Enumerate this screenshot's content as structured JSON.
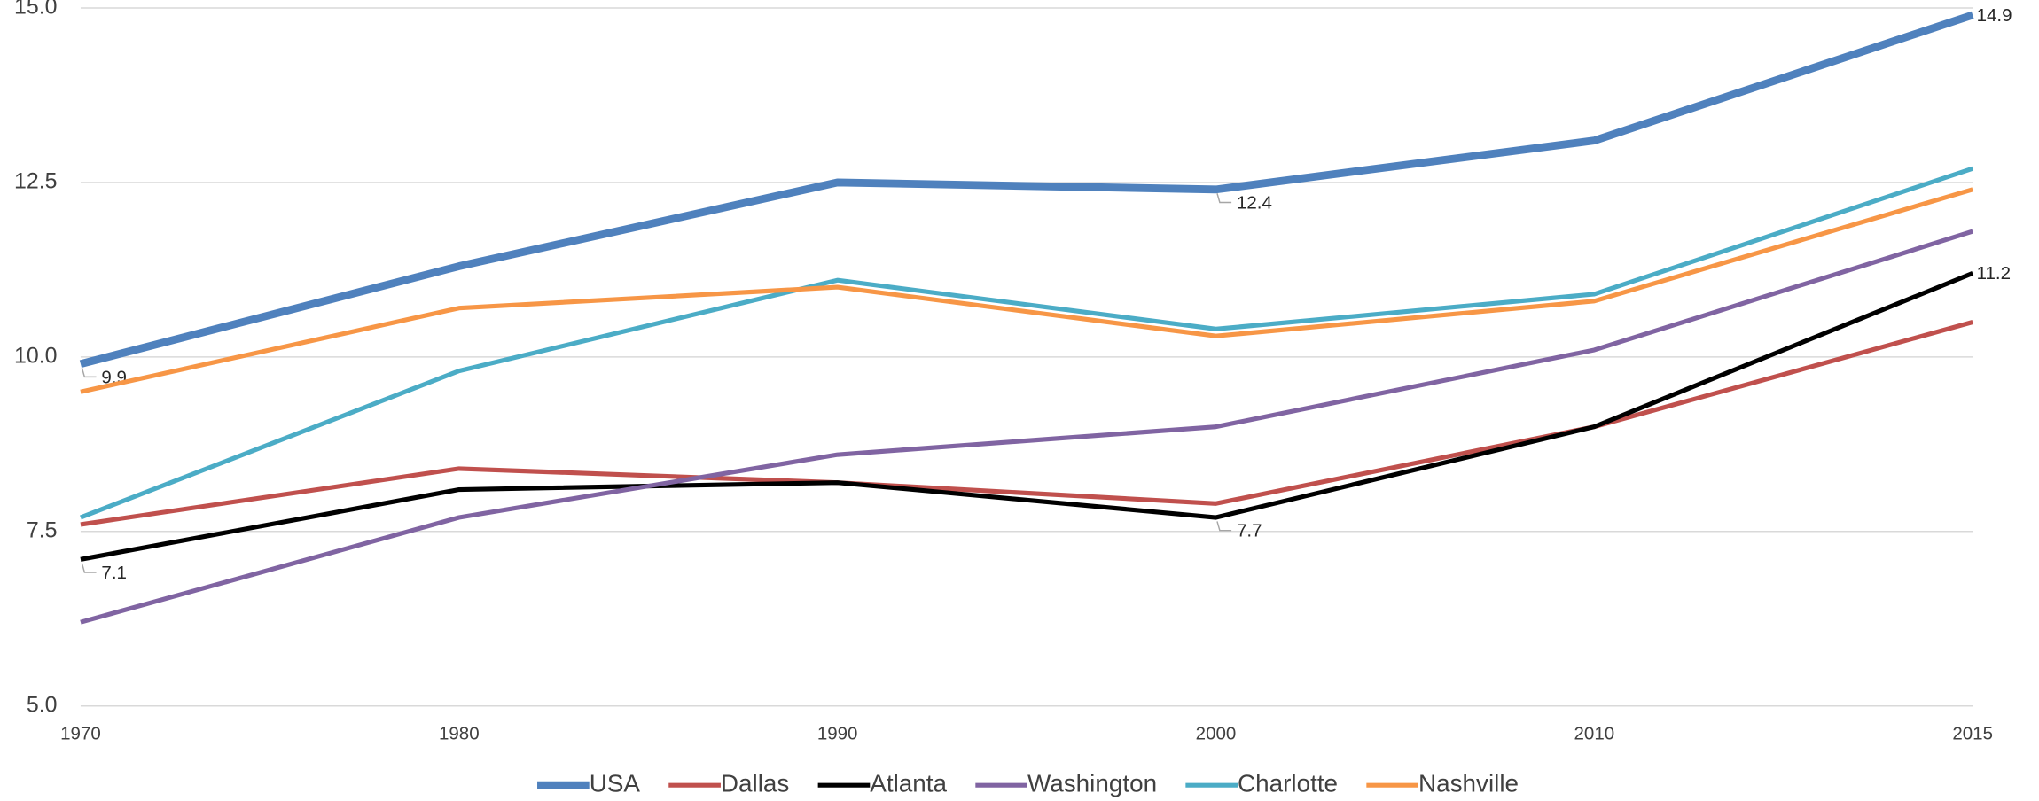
{
  "chart_data": {
    "type": "line",
    "categories": [
      "1970",
      "1980",
      "1990",
      "2000",
      "2010",
      "2015"
    ],
    "ylim": [
      5,
      15
    ],
    "yticks": [
      {
        "value": 15,
        "label": "15.0"
      },
      12.5,
      {
        "value": 10,
        "label": "10.0"
      },
      7.5,
      {
        "value": 5,
        "label": "5.0"
      }
    ],
    "grid": true,
    "legend": "bottom",
    "series": [
      {
        "name": "USA",
        "color": "#4f81bd",
        "values": [
          9.9,
          11.3,
          12.5,
          12.4,
          13.1,
          14.9
        ],
        "value_labels": [
          "9.9",
          null,
          null,
          "12.4",
          null,
          "14.9"
        ]
      },
      {
        "name": "Dallas",
        "color": "#c0504d",
        "values": [
          7.6,
          8.4,
          8.2,
          7.9,
          9.0,
          10.5
        ]
      },
      {
        "name": "Atlanta",
        "color": "#000000",
        "values": [
          7.1,
          8.1,
          8.2,
          7.7,
          9.0,
          11.2
        ],
        "value_labels": [
          "7.1",
          null,
          null,
          "7.7",
          null,
          "11.2"
        ]
      },
      {
        "name": "Washington",
        "color": "#8064a2",
        "values": [
          6.2,
          7.7,
          8.6,
          9.0,
          10.1,
          11.8
        ]
      },
      {
        "name": "Charlotte",
        "color": "#4bacc6",
        "values": [
          7.7,
          9.8,
          11.1,
          10.4,
          10.9,
          12.7
        ]
      },
      {
        "name": "Nashville",
        "color": "#f79646",
        "values": [
          9.5,
          10.7,
          11.0,
          10.3,
          10.8,
          12.4
        ]
      }
    ]
  }
}
